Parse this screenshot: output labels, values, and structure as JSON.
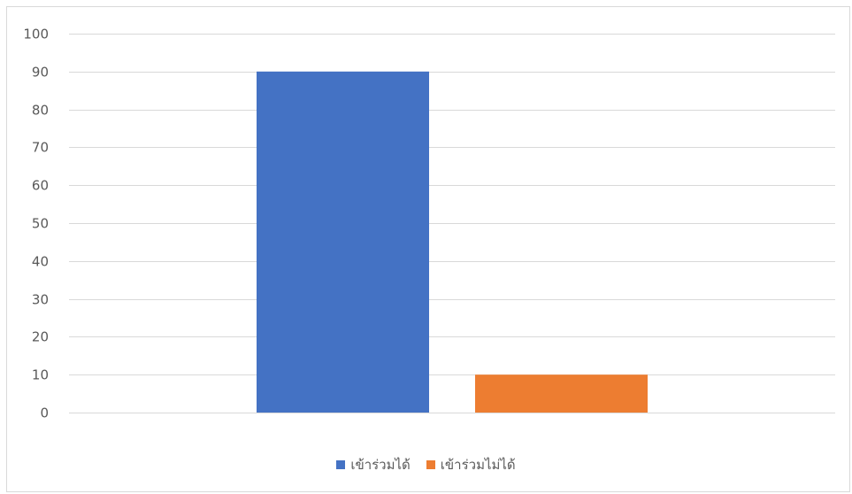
{
  "chart_data": {
    "type": "bar",
    "title": "",
    "xlabel": "",
    "ylabel": "",
    "ylim": [
      0,
      100
    ],
    "yticks": [
      0,
      10,
      20,
      30,
      40,
      50,
      60,
      70,
      80,
      90,
      100
    ],
    "grid": true,
    "legend_position": "bottom",
    "series": [
      {
        "name": "เข้าร่วมได้",
        "values": [
          90
        ],
        "color": "#4472C4"
      },
      {
        "name": "เข้าร่วมไม่ได้",
        "values": [
          10
        ],
        "color": "#ED7D31"
      }
    ],
    "categories": [
      ""
    ]
  },
  "legend": {
    "items": [
      {
        "label": "เข้าร่วมได้",
        "color": "#4472C4"
      },
      {
        "label": "เข้าร่วมไม่ได้",
        "color": "#ED7D31"
      }
    ]
  },
  "colors": {
    "gridline": "#d9d9d9",
    "axis_text": "#595959",
    "border": "#d9d9d9"
  }
}
